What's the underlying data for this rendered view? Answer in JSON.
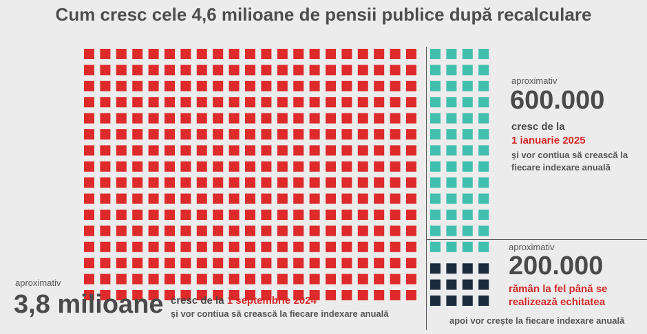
{
  "title": "Cum cresc cele 4,6 milioane de pensii publice după recalculare",
  "colors": {
    "red": "#de2a2a",
    "teal": "#41bfae",
    "navy": "#1a2b3d",
    "background": "#ececec"
  },
  "chart_data": {
    "type": "waffle",
    "title": "Cum cresc cele 4,6 milioane de pensii publice după recalculare",
    "groups": [
      {
        "key": "red",
        "value_label": "3,8 milioane",
        "prefix": "aproximativ",
        "line1": "cresc de la ",
        "line1_highlight": "1 septembrie 2024",
        "line2": "și vor contiua să crească la fiecare indexare anuală",
        "color": "#de2a2a",
        "value": 3800000
      },
      {
        "key": "teal",
        "value_label": "600.000",
        "prefix": "aproximativ",
        "line1": "cresc de la",
        "line1_highlight": "1 ianuarie 2025",
        "line2": "și vor contiua să crească la",
        "line3": "fiecare indexare anuală",
        "color": "#41bfae",
        "value": 600000
      },
      {
        "key": "navy",
        "value_label": "200.000",
        "prefix": "aproximativ",
        "line1_highlight": "rămân la fel până se",
        "line2_highlight": "realizează echitatea",
        "line3": "apoi vor crește la fiecare indexare anuală",
        "color": "#1a2b3d",
        "value": 200000
      }
    ],
    "grid": {
      "rows": 16,
      "red_cols": 21,
      "right_cols": 4,
      "navy_rows_bottom": 3
    }
  }
}
